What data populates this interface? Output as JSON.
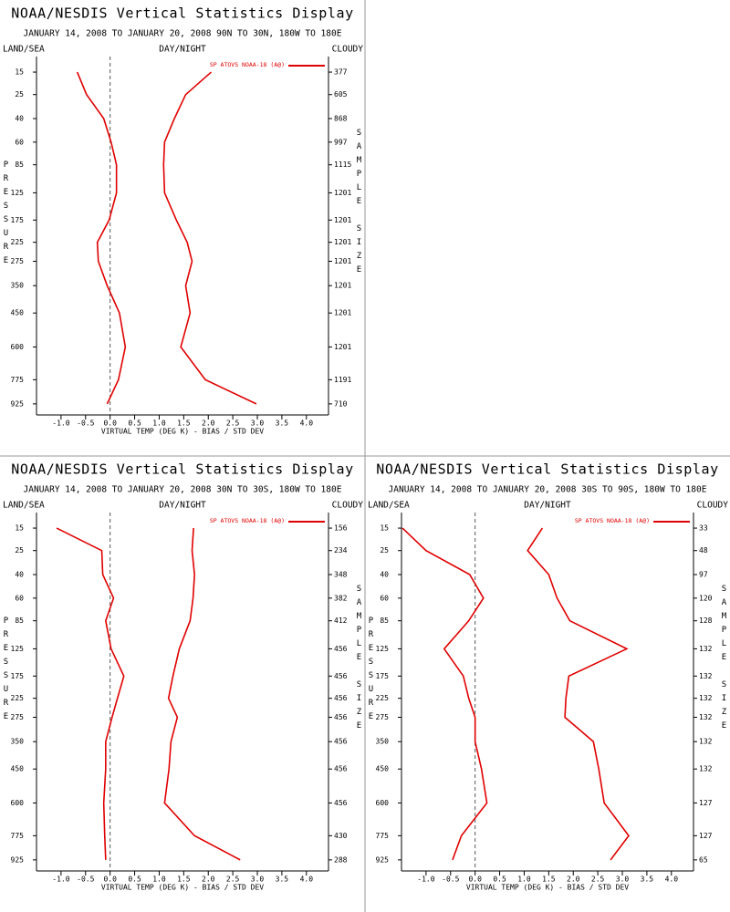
{
  "chart_data": [
    {
      "type": "line",
      "title": "NOAA/NESDIS Vertical Statistics Display",
      "subtitle": "JANUARY 14, 2008 TO JANUARY 20, 2008 90N TO 30N, 180W TO 180E",
      "left_label": "LAND/SEA",
      "center_label": "DAY/NIGHT",
      "right_label": "CLOUDY",
      "y_label": "PRESSURE",
      "y2_label": "SAMPLE SIZE",
      "x_label": "VIRTUAL TEMP (DEG K) - BIAS / STD DEV",
      "legend": "SP ATOVS NOAA-18 (A@)",
      "color": "#e00000",
      "y": [
        15,
        25,
        40,
        60,
        85,
        125,
        175,
        225,
        275,
        350,
        450,
        600,
        775,
        925
      ],
      "ylim": [
        10,
        1000
      ],
      "bias": [
        -0.67,
        -0.48,
        -0.13,
        0.02,
        0.13,
        0.13,
        -0.02,
        -0.26,
        -0.24,
        -0.06,
        0.19,
        0.31,
        0.17,
        -0.06
      ],
      "std_dev": [
        2.06,
        1.54,
        1.31,
        1.11,
        1.09,
        1.11,
        1.35,
        1.57,
        1.67,
        1.54,
        1.63,
        1.44,
        1.94,
        2.98
      ],
      "sample_size": [
        377,
        605,
        868,
        997,
        1115,
        1201,
        1201,
        1201,
        1201,
        1201,
        1201,
        1201,
        1191,
        710
      ],
      "xlim": [
        -1.5,
        4.45
      ],
      "xticks": [
        {
          "value": -1,
          "label": "-1.0"
        },
        {
          "value": -0.5,
          "label": "-0.5"
        },
        {
          "value": 0,
          "label": "0.0"
        },
        {
          "value": 0.5,
          "label": "0.5"
        },
        {
          "value": 1,
          "label": "1.0"
        },
        {
          "value": 1.5,
          "label": "1.5"
        },
        {
          "value": 2,
          "label": "2.0"
        },
        {
          "value": 2.5,
          "label": "2.5"
        },
        {
          "value": 3,
          "label": "3.0"
        },
        {
          "value": 3.5,
          "label": "3.5"
        },
        {
          "value": 4,
          "label": "4.0"
        }
      ]
    },
    {
      "type": "line",
      "title": "NOAA/NESDIS Vertical Statistics Display",
      "subtitle": "JANUARY 14, 2008 TO JANUARY 20, 2008 30N TO 30S, 180W TO 180E",
      "left_label": "LAND/SEA",
      "center_label": "DAY/NIGHT",
      "right_label": "CLOUDY",
      "y_label": "PRESSURE",
      "y2_label": "SAMPLE SIZE",
      "x_label": "VIRTUAL TEMP (DEG K) - BIAS / STD DEV",
      "legend": "SP ATOVS NOAA-18 (A@)",
      "color": "#e00000",
      "y": [
        15,
        25,
        40,
        60,
        85,
        125,
        175,
        225,
        275,
        350,
        450,
        600,
        775,
        925
      ],
      "ylim": [
        10,
        1000
      ],
      "bias": [
        -1.09,
        -0.17,
        -0.15,
        0.07,
        -0.09,
        0.02,
        0.28,
        0.15,
        0.04,
        -0.09,
        -0.09,
        -0.13,
        -0.11,
        -0.09
      ],
      "std_dev": [
        1.7,
        1.67,
        1.72,
        1.69,
        1.63,
        1.41,
        1.28,
        1.19,
        1.37,
        1.24,
        1.2,
        1.11,
        1.72,
        2.65
      ],
      "sample_size": [
        156,
        234,
        348,
        382,
        412,
        456,
        456,
        456,
        456,
        456,
        456,
        456,
        430,
        288
      ],
      "xlim": [
        -1.5,
        4.45
      ],
      "xticks": [
        {
          "value": -1,
          "label": "-1.0"
        },
        {
          "value": -0.5,
          "label": "-0.5"
        },
        {
          "value": 0,
          "label": "0.0"
        },
        {
          "value": 0.5,
          "label": "0.5"
        },
        {
          "value": 1,
          "label": "1.0"
        },
        {
          "value": 1.5,
          "label": "1.5"
        },
        {
          "value": 2,
          "label": "2.0"
        },
        {
          "value": 2.5,
          "label": "2.5"
        },
        {
          "value": 3,
          "label": "3.0"
        },
        {
          "value": 3.5,
          "label": "3.5"
        },
        {
          "value": 4,
          "label": "4.0"
        }
      ]
    },
    {
      "type": "line",
      "title": "NOAA/NESDIS Vertical Statistics Display",
      "subtitle": "JANUARY 14, 2008 TO JANUARY 20, 2008 30S TO 90S, 180W TO 180E",
      "left_label": "LAND/SEA",
      "center_label": "DAY/NIGHT",
      "right_label": "CLOUDY",
      "y_label": "PRESSURE",
      "y2_label": "SAMPLE SIZE",
      "x_label": "VIRTUAL TEMP (DEG K) - BIAS / STD DEV",
      "legend": "SP ATOVS NOAA-18 (A@)",
      "color": "#e00000",
      "y": [
        15,
        25,
        40,
        60,
        85,
        125,
        175,
        225,
        275,
        350,
        450,
        600,
        775,
        925
      ],
      "ylim": [
        10,
        1000
      ],
      "bias": [
        -1.48,
        -1.0,
        -0.11,
        0.17,
        -0.13,
        -0.63,
        -0.24,
        -0.13,
        0.0,
        0.0,
        0.13,
        0.24,
        -0.28,
        -0.46
      ],
      "std_dev": [
        1.37,
        1.07,
        1.5,
        1.67,
        1.93,
        3.09,
        1.91,
        1.85,
        1.83,
        2.41,
        2.52,
        2.63,
        3.13,
        2.76
      ],
      "sample_size": [
        33,
        48,
        97,
        120,
        128,
        132,
        132,
        132,
        132,
        132,
        132,
        127,
        127,
        65
      ],
      "xlim": [
        -1.5,
        4.45
      ],
      "xticks": [
        {
          "value": -1,
          "label": "-1.0"
        },
        {
          "value": -0.5,
          "label": "-0.5"
        },
        {
          "value": 0,
          "label": "0.0"
        },
        {
          "value": 0.5,
          "label": "0.5"
        },
        {
          "value": 1,
          "label": "1.0"
        },
        {
          "value": 1.5,
          "label": "1.5"
        },
        {
          "value": 2,
          "label": "2.0"
        },
        {
          "value": 2.5,
          "label": "2.5"
        },
        {
          "value": 3,
          "label": "3.0"
        },
        {
          "value": 3.5,
          "label": "3.5"
        },
        {
          "value": 4,
          "label": "4.0"
        }
      ]
    }
  ]
}
